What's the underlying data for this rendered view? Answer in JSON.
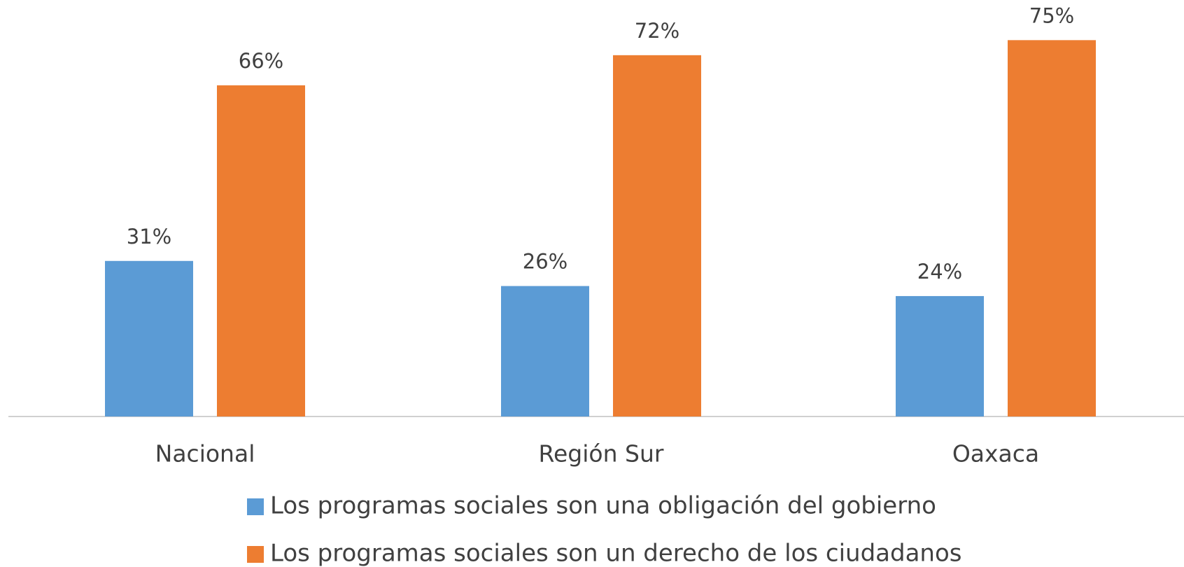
{
  "chart_data": {
    "type": "bar",
    "categories": [
      "Nacional",
      "Región Sur",
      "Oaxaca"
    ],
    "series": [
      {
        "name": "Los programas sociales son una obligación del gobierno",
        "color": "#5b9bd5",
        "values": [
          31,
          26,
          24
        ],
        "value_labels": [
          "31%",
          "26%",
          "24%"
        ]
      },
      {
        "name": "Los programas sociales son un derecho de los ciudadanos",
        "color": "#ed7d31",
        "values": [
          66,
          72,
          75
        ],
        "value_labels": [
          "66%",
          "72%",
          "75%"
        ]
      }
    ],
    "ylim": [
      0,
      83
    ],
    "legend": "bottom"
  }
}
